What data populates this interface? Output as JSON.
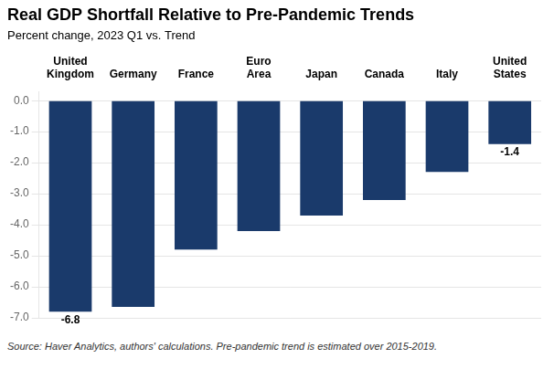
{
  "chart_data": {
    "type": "bar",
    "title": "Real GDP Shortfall Relative to Pre-Pandemic Trends",
    "subtitle": "Percent change, 2023 Q1 vs. Trend",
    "source": "Source: Haver Analytics, authors' calculations. Pre-pandemic trend is estimated over 2015-2019.",
    "categories": [
      "United\nKingdom",
      "Germany",
      "France",
      "Euro\nArea",
      "Japan",
      "Canada",
      "Italy",
      "United\nStates"
    ],
    "values": [
      -6.8,
      -6.65,
      -4.8,
      -4.2,
      -3.7,
      -3.2,
      -2.3,
      -1.4
    ],
    "color": "#1a3a6b",
    "data_labels": true,
    "value_labels": [
      "-6.8",
      null,
      null,
      null,
      null,
      null,
      null,
      "-1.4"
    ],
    "ylim": [
      -7.0,
      0.3
    ],
    "yticks": [
      {
        "value": 0.0,
        "label": "0.0"
      },
      {
        "value": -1.0,
        "label": "-1.0"
      },
      {
        "value": -2.0,
        "label": "-2.0"
      },
      {
        "value": -3.0,
        "label": "-3.0"
      },
      {
        "value": -4.0,
        "label": "-4.0"
      },
      {
        "value": -5.0,
        "label": "-5.0"
      },
      {
        "value": -6.0,
        "label": "-6.0"
      },
      {
        "value": -7.0,
        "label": "-7.0"
      }
    ],
    "grid": true
  }
}
